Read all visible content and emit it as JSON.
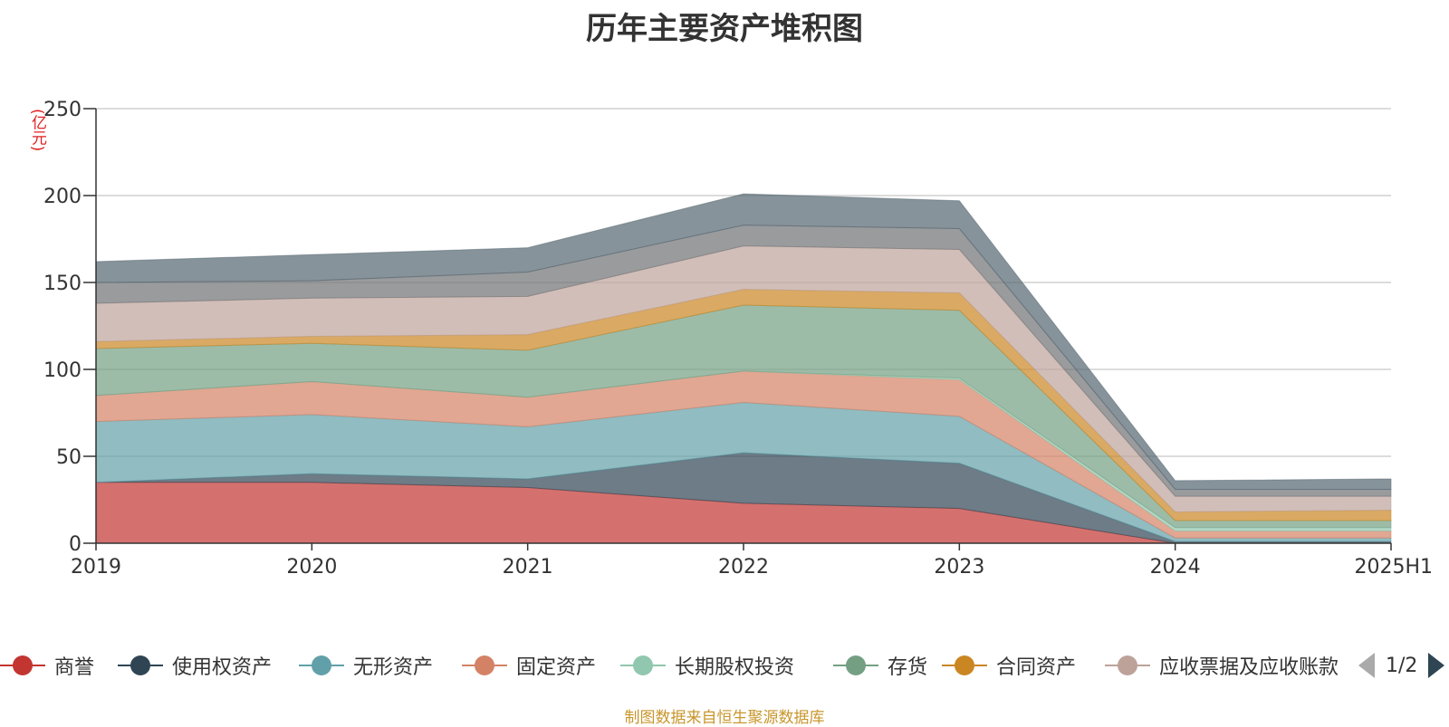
{
  "chart_data": {
    "type": "area",
    "stacked": true,
    "title": "历年主要资产堆积图",
    "ylabel": "(亿元)",
    "categories": [
      "2019",
      "2020",
      "2021",
      "2022",
      "2023",
      "2024",
      "2025H1"
    ],
    "ylim": [
      0,
      250
    ],
    "yticks": [
      0,
      50,
      100,
      150,
      200,
      250
    ],
    "grid": true,
    "legend_position": "bottom",
    "series": [
      {
        "name": "商誉",
        "color": "#c23531",
        "values": [
          35,
          35,
          32,
          23,
          20,
          0,
          0
        ]
      },
      {
        "name": "使用权资产",
        "color": "#2f4554",
        "values": [
          0,
          5,
          5,
          29,
          26,
          1,
          1
        ]
      },
      {
        "name": "无形资产",
        "color": "#61a0a8",
        "values": [
          35,
          34,
          30,
          29,
          27,
          2,
          2
        ]
      },
      {
        "name": "固定资产",
        "color": "#d48265",
        "values": [
          15,
          19,
          17,
          18,
          21,
          4,
          4
        ]
      },
      {
        "name": "长期股权投资",
        "color": "#91c7ae",
        "values": [
          0,
          0,
          0,
          0,
          1,
          2,
          2
        ]
      },
      {
        "name": "存货",
        "color": "#749f83",
        "values": [
          27,
          22,
          27,
          38,
          39,
          4,
          4
        ]
      },
      {
        "name": "合同资产",
        "color": "#ca8622",
        "values": [
          4,
          4,
          9,
          9,
          10,
          5,
          6
        ]
      },
      {
        "name": "应收票据及应收账款",
        "color": "#bda29a",
        "values": [
          22,
          22,
          22,
          25,
          25,
          9,
          8
        ]
      },
      {
        "name": "",
        "color": "#6e7074",
        "values": [
          12,
          10,
          14,
          12,
          12,
          4,
          4
        ]
      },
      {
        "name": "",
        "color": "#546570",
        "values": [
          12,
          15,
          14,
          18,
          16,
          5,
          6
        ]
      }
    ]
  },
  "legend": {
    "page": "1/2"
  },
  "footer": {
    "source": "制图数据来自恒生聚源数据库"
  }
}
